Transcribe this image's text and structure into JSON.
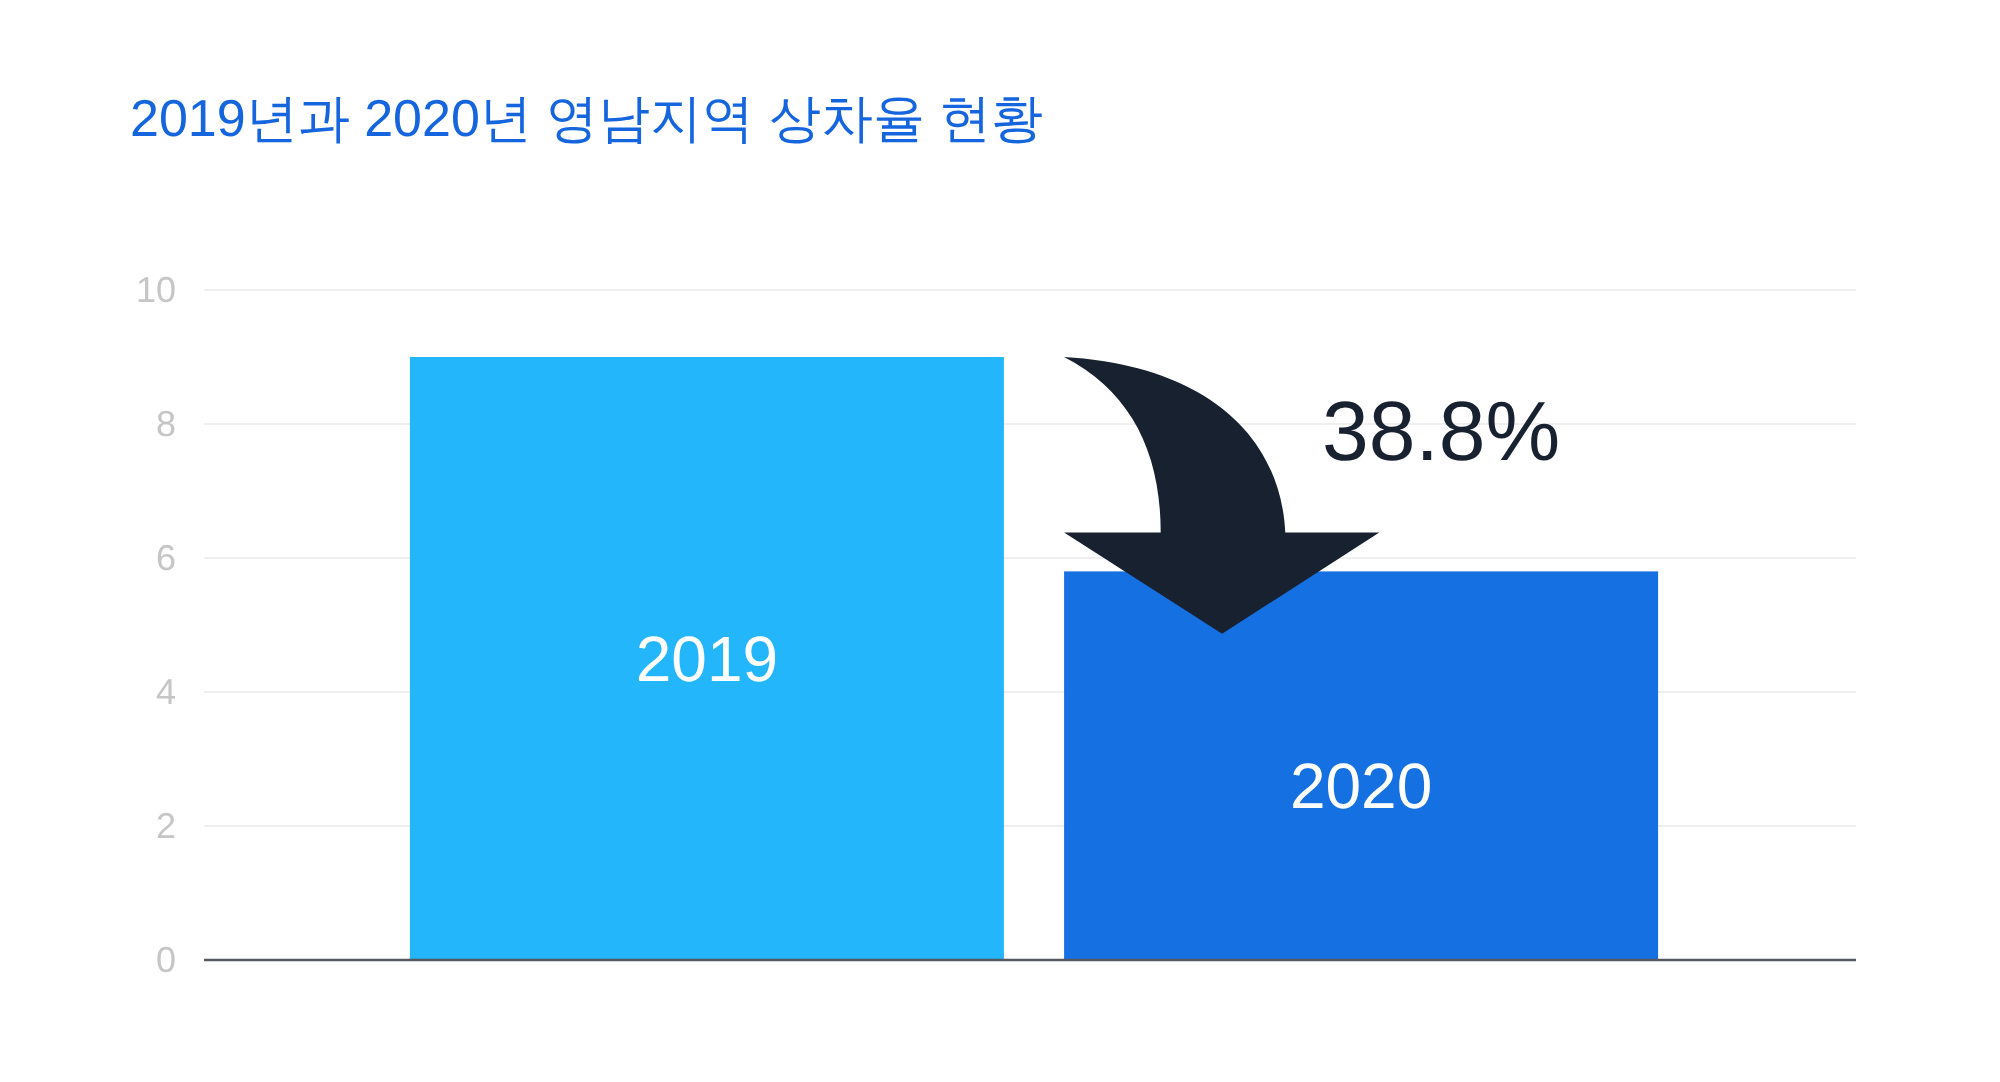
{
  "chart_data": {
    "type": "bar",
    "title": "2019년과 2020년 영남지역 상차율 현황",
    "categories": [
      "2019",
      "2020"
    ],
    "values": [
      9,
      5.8
    ],
    "colors": [
      "#24b6fb",
      "#1570e2"
    ],
    "ylim": [
      0,
      10
    ],
    "yticks": [
      0,
      2,
      4,
      6,
      8,
      10
    ],
    "grid": "y",
    "annotations": [
      "38.8%"
    ]
  }
}
